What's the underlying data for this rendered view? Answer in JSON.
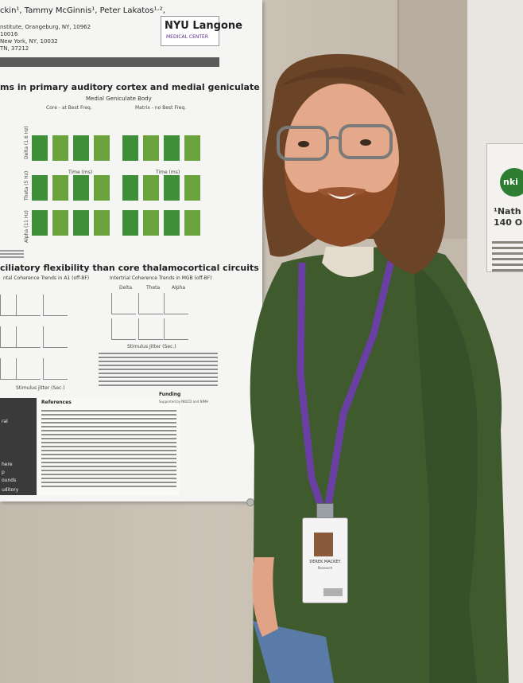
{
  "poster": {
    "authors": "ckin¹, Tammy McGinnis¹, Peter Lakatos¹·²,",
    "affiliations": [
      "nstitute, Orangeburg, NY, 10962",
      "10016",
      "New York, NY, 10032",
      "TN, 37212"
    ],
    "logo_line1": "NYU Langone",
    "logo_line2": "MEDICAL CENTER",
    "section1_title": "ms in primary auditory cortex and medial geniculate",
    "figure_label": "Medial Geniculate Body",
    "col_headers": [
      "Core - at Best Freq.",
      "Matrix - no Best Freq."
    ],
    "row_labels": [
      "Delta (1.6 Hz)",
      "Theta (5 Hz)",
      "Alpha (11 Hz)"
    ],
    "time_label": "Time (ms)",
    "section2_title": "ciliatory flexibility than core thalamocortical circuits",
    "subtitle_a": "ntal Coherence Trends in A1 (off-BF)",
    "subtitle_b": "Intertrial Coherence Trends in MGB (off-BF)",
    "band_labels": [
      "Delta",
      "Theta",
      "Alpha"
    ],
    "stim_label": "Stimulus Jitter (Sec.)",
    "references_title": "References",
    "funding_title": "Funding",
    "funding_text": "Supported by NIDCD and NIMH",
    "side_words": [
      "ral",
      "here",
      "p",
      "ounds",
      "uditory"
    ]
  },
  "right_card": {
    "logo_text": "nki",
    "line1": "¹Nath",
    "line2": "140 O"
  },
  "badge": {
    "name": "DEREK MACKEY",
    "sub": "Research"
  },
  "colors": {
    "wall": "#c9bfb3",
    "sweater": "#3f5a2c",
    "lanyard": "#6a3fa3",
    "hair": "#6b4428",
    "beard": "#8a4a26",
    "skin": "#e3a98a"
  }
}
